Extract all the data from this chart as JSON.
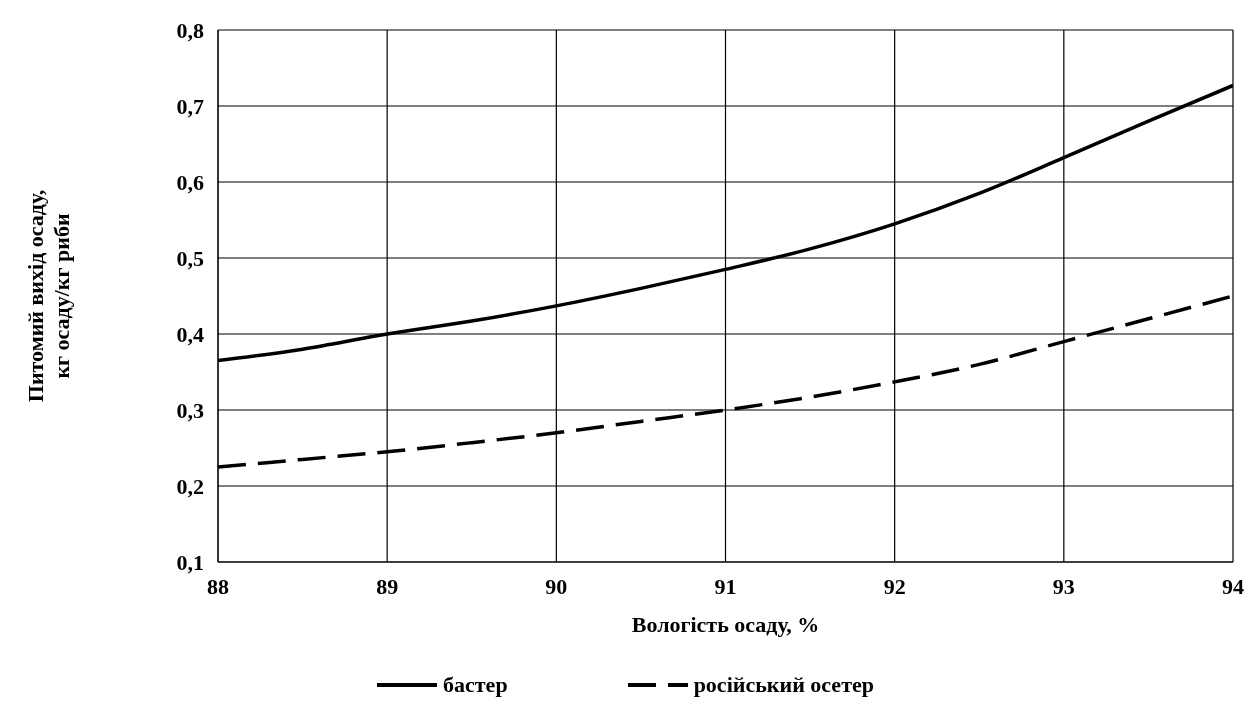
{
  "chart_data": {
    "type": "line",
    "xlabel": "Вологість осаду, %",
    "ylabel": "Питомий вихід осаду,\nкг осаду/кг риби",
    "x": [
      88,
      88.5,
      89,
      89.5,
      90,
      90.5,
      91,
      91.5,
      92,
      92.5,
      93,
      93.5,
      94
    ],
    "series": [
      {
        "name": "бастер",
        "color": "#000000",
        "line_style": "solid",
        "values": [
          0.365,
          0.38,
          0.4,
          0.417,
          0.437,
          0.46,
          0.485,
          0.512,
          0.545,
          0.585,
          0.632,
          0.68,
          0.727
        ]
      },
      {
        "name": "російський осетер",
        "color": "#000000",
        "line_style": "dashed",
        "values": [
          0.225,
          0.235,
          0.245,
          0.257,
          0.27,
          0.285,
          0.3,
          0.317,
          0.337,
          0.36,
          0.39,
          0.42,
          0.45
        ]
      }
    ],
    "xlim": [
      88,
      94
    ],
    "xticks": [
      88,
      89,
      90,
      91,
      92,
      93,
      94
    ],
    "ylim": [
      0.1,
      0.8
    ],
    "yticks": [
      {
        "value": 0.1,
        "label": "0,1"
      },
      {
        "value": 0.2,
        "label": "0,2"
      },
      {
        "value": 0.3,
        "label": "0,3"
      },
      {
        "value": 0.4,
        "label": "0,4"
      },
      {
        "value": 0.5,
        "label": "0,5"
      },
      {
        "value": 0.6,
        "label": "0,6"
      },
      {
        "value": 0.7,
        "label": "0,7"
      },
      {
        "value": 0.8,
        "label": "0,8"
      }
    ],
    "grid": true,
    "legend": "bottom",
    "marker": "none"
  }
}
